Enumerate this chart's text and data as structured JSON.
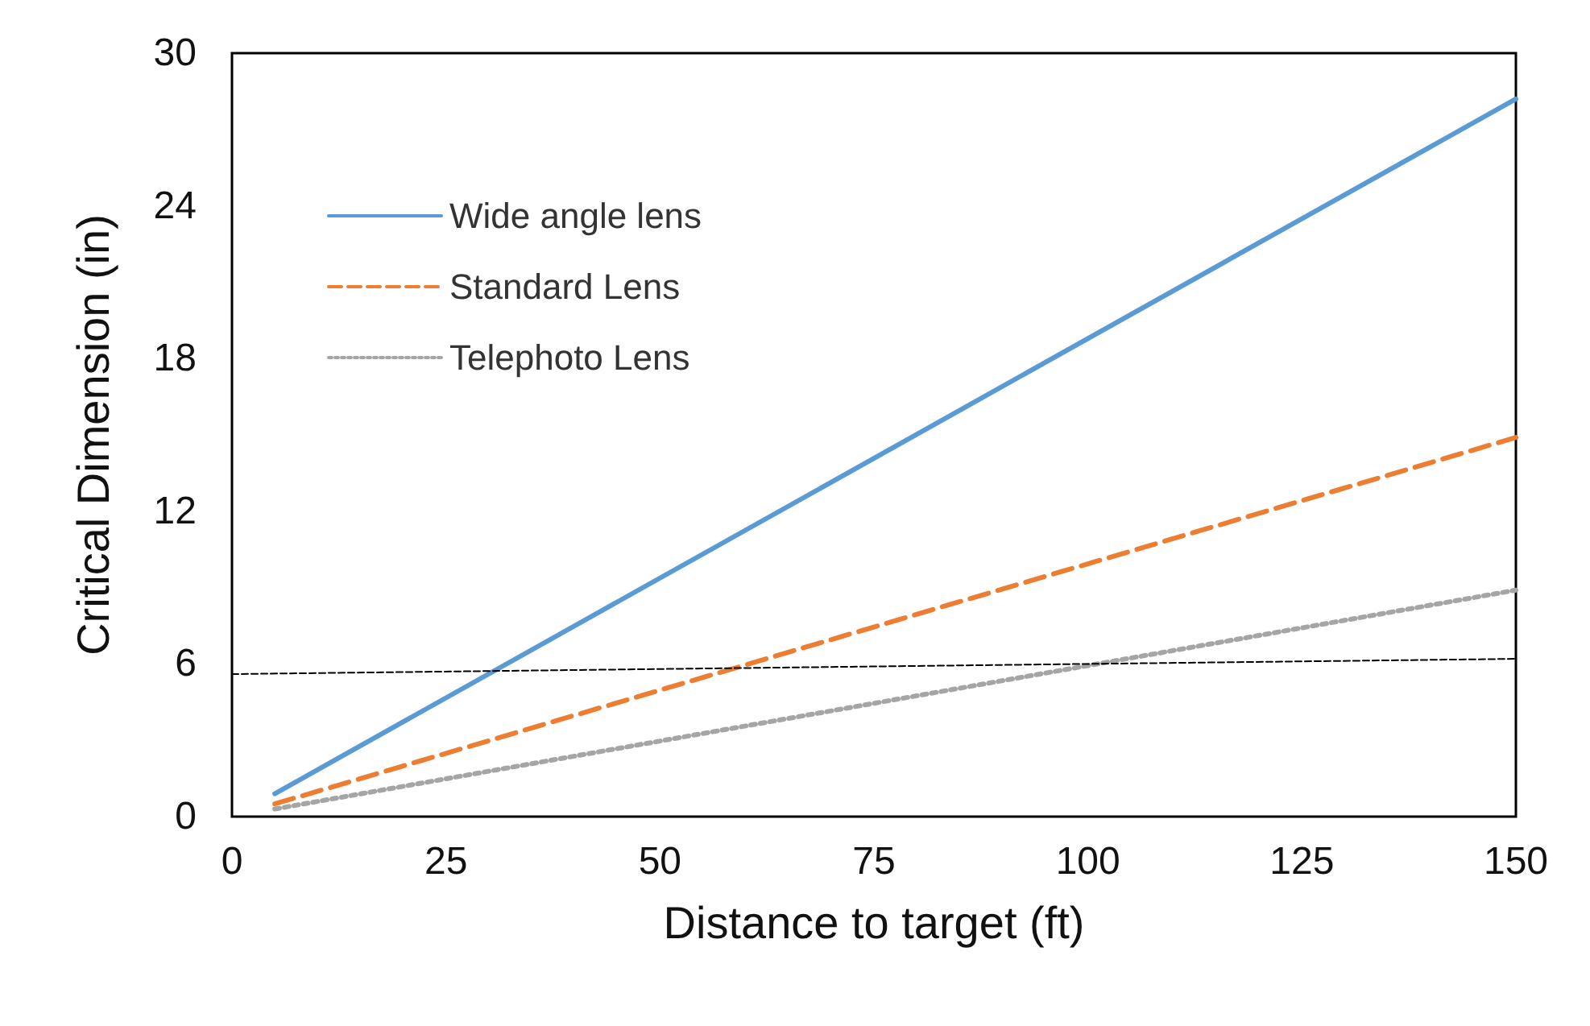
{
  "chart_data": {
    "type": "line",
    "xlabel": "Distance to target (ft)",
    "ylabel": "Critical Dimension (in)",
    "xlim": [
      0,
      150
    ],
    "xticks": [
      0,
      25,
      50,
      75,
      100,
      125,
      150
    ],
    "ylim": [
      0,
      30
    ],
    "yticks": [
      0,
      6,
      12,
      18,
      24,
      30
    ],
    "grid": false,
    "legend": "top left",
    "marker": "none",
    "series": [
      {
        "name": "Wide angle lens",
        "color": "#5b9bd5",
        "line_style": "solid",
        "x": [
          5,
          150
        ],
        "values": [
          0.9,
          28.2
        ]
      },
      {
        "name": "Standard Lens",
        "color": "#ed7d31",
        "line_style": "dashed",
        "x": [
          5,
          150
        ],
        "values": [
          0.5,
          14.9
        ]
      },
      {
        "name": "Telephoto Lens",
        "color": "#a5a5a5",
        "line_style": "dotted",
        "x": [
          5,
          150
        ],
        "values": [
          0.3,
          8.9
        ]
      },
      {
        "color": "#000000",
        "line_style": "dashed",
        "x": [
          0,
          150
        ],
        "values": [
          5.6,
          6.2
        ]
      }
    ]
  }
}
